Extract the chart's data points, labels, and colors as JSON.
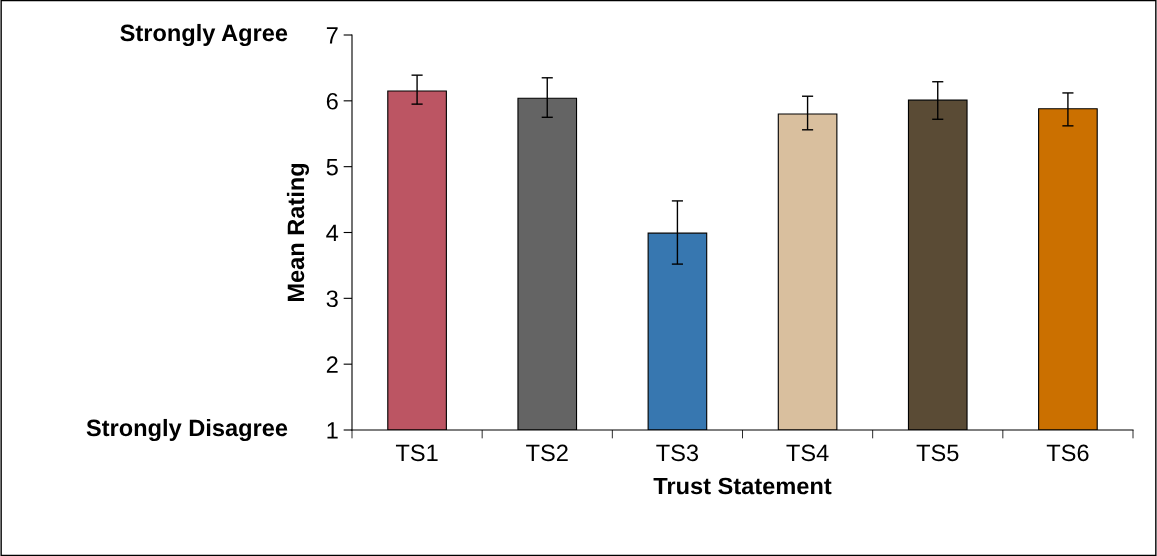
{
  "chart_data": {
    "type": "bar",
    "xlabel": "Trust Statement",
    "ylabel": "Mean Rating",
    "categories": [
      "TS1",
      "TS2",
      "TS3",
      "TS4",
      "TS5",
      "TS6"
    ],
    "values": [
      6.15,
      6.04,
      3.99,
      5.8,
      6.01,
      5.88
    ],
    "errors": [
      [
        5.95,
        6.39
      ],
      [
        5.75,
        6.35
      ],
      [
        3.52,
        4.48
      ],
      [
        5.56,
        6.07
      ],
      [
        5.72,
        6.29
      ],
      [
        5.62,
        6.12
      ]
    ],
    "colors": [
      "#bc5563",
      "#646464",
      "#3777b0",
      "#d9bf9e",
      "#5a4b35",
      "#cb7000"
    ],
    "ylim": [
      1,
      7
    ],
    "yticks": [
      1,
      2,
      3,
      4,
      5,
      6,
      7
    ],
    "grid": false,
    "annotations": [
      "Strongly Agree",
      "Strongly Disagree"
    ]
  }
}
